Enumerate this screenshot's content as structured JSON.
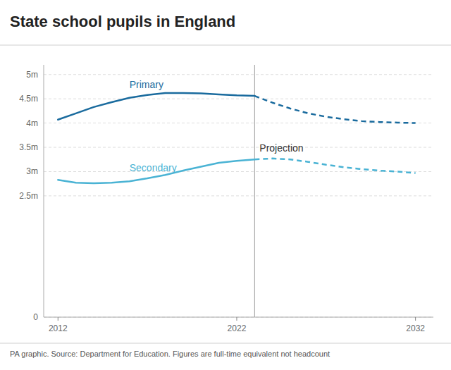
{
  "chart_data": {
    "type": "line",
    "title": "State school pupils in England",
    "footer": "PA graphic. Source: Department for Education. Figures are full-time equivalent not headcount",
    "series": [
      {
        "name": "Primary",
        "color": "#1a6b9e",
        "line_style": "solid",
        "x": [
          2012,
          2013,
          2014,
          2015,
          2016,
          2017,
          2018,
          2019,
          2020,
          2021,
          2022,
          2023
        ],
        "values": [
          4.07,
          4.2,
          4.33,
          4.43,
          4.52,
          4.58,
          4.62,
          4.62,
          4.61,
          4.59,
          4.57,
          4.56
        ]
      },
      {
        "color": "#1a6b9e",
        "line_style": "dashed",
        "x": [
          2023,
          2024,
          2025,
          2026,
          2027,
          2028,
          2029,
          2030,
          2031,
          2032
        ],
        "values": [
          4.56,
          4.42,
          4.3,
          4.2,
          4.13,
          4.08,
          4.04,
          4.02,
          4.01,
          4.0
        ]
      },
      {
        "name": "Secondary",
        "color": "#4ab3d4",
        "line_style": "solid",
        "x": [
          2012,
          2013,
          2014,
          2015,
          2016,
          2017,
          2018,
          2019,
          2020,
          2021,
          2022,
          2023
        ],
        "values": [
          2.83,
          2.77,
          2.76,
          2.77,
          2.8,
          2.86,
          2.93,
          3.02,
          3.1,
          3.18,
          3.22,
          3.25
        ]
      },
      {
        "color": "#4ab3d4",
        "line_style": "dashed",
        "x": [
          2023,
          2024,
          2025,
          2026,
          2027,
          2028,
          2029,
          2030,
          2031,
          2032
        ],
        "values": [
          3.25,
          3.27,
          3.25,
          3.2,
          3.14,
          3.09,
          3.05,
          3.02,
          3.0,
          2.97
        ]
      }
    ],
    "annotations": [
      {
        "text": "Projection",
        "x": 2023,
        "y": 3.62
      }
    ],
    "xlim": [
      2011.2,
      2033
    ],
    "xticks": [
      2012,
      2022,
      2032
    ],
    "ylim": [
      0,
      5.2
    ],
    "yticks": [
      0,
      {
        "value": 2.5,
        "label": "2.5m"
      },
      {
        "value": 3.0,
        "label": "3m"
      },
      {
        "value": 3.5,
        "label": "3.5m"
      },
      {
        "value": 4.0,
        "label": "4m"
      },
      {
        "value": 4.5,
        "label": "4.5m"
      },
      {
        "value": 5.0,
        "label": "5m"
      }
    ],
    "grid": true
  }
}
